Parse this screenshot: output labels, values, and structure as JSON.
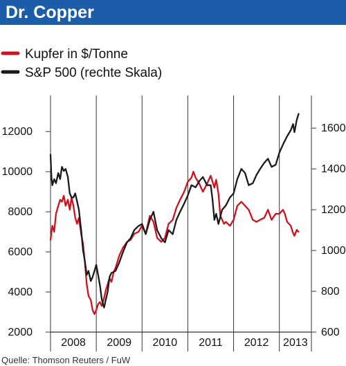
{
  "chart_data": {
    "type": "line",
    "title": "Dr. Copper",
    "source": "Quelle: Thomson Reuters / FuW",
    "x_categories": [
      "2008",
      "2009",
      "2010",
      "2011",
      "2012",
      "2013"
    ],
    "left_axis": {
      "ticks": [
        "2000",
        "4000",
        "6000",
        "8000",
        "10000",
        "12000"
      ],
      "ylim": [
        2000,
        13800
      ]
    },
    "right_axis": {
      "ticks": [
        "600",
        "800",
        "1000",
        "1200",
        "1400",
        "1600"
      ],
      "ylim": [
        600,
        1760
      ]
    },
    "xlim": [
      2008.0,
      2013.7
    ],
    "grid": "vertical year separators",
    "legend": "top-left",
    "series": [
      {
        "name": "Kupfer in $/Tonne",
        "axis": "left",
        "color": "#d0101c",
        "x": [
          2008.0,
          2008.04,
          2008.08,
          2008.12,
          2008.17,
          2008.21,
          2008.25,
          2008.29,
          2008.33,
          2008.38,
          2008.42,
          2008.46,
          2008.5,
          2008.54,
          2008.58,
          2008.62,
          2008.67,
          2008.71,
          2008.75,
          2008.79,
          2008.83,
          2008.88,
          2008.92,
          2008.96,
          2009.0,
          2009.04,
          2009.08,
          2009.12,
          2009.17,
          2009.21,
          2009.25,
          2009.29,
          2009.33,
          2009.38,
          2009.42,
          2009.5,
          2009.58,
          2009.67,
          2009.75,
          2009.83,
          2009.92,
          2010.0,
          2010.08,
          2010.17,
          2010.25,
          2010.33,
          2010.42,
          2010.5,
          2010.58,
          2010.67,
          2010.75,
          2010.83,
          2010.92,
          2011.0,
          2011.08,
          2011.12,
          2011.17,
          2011.25,
          2011.33,
          2011.42,
          2011.5,
          2011.58,
          2011.62,
          2011.67,
          2011.71,
          2011.75,
          2011.79,
          2011.83,
          2011.92,
          2012.0,
          2012.08,
          2012.17,
          2012.25,
          2012.33,
          2012.42,
          2012.5,
          2012.58,
          2012.67,
          2012.75,
          2012.83,
          2012.92,
          2013.0,
          2013.08,
          2013.12,
          2013.17,
          2013.21,
          2013.25,
          2013.29,
          2013.33,
          2013.38,
          2013.42
        ],
        "y": [
          6600,
          7300,
          7000,
          7900,
          8300,
          8600,
          8500,
          8800,
          8300,
          8600,
          8100,
          8700,
          8300,
          7700,
          7400,
          7700,
          6900,
          6400,
          5500,
          4400,
          3800,
          3600,
          3100,
          2900,
          3100,
          3400,
          3500,
          3300,
          3700,
          4100,
          4400,
          4700,
          4500,
          5000,
          5200,
          5800,
          6200,
          6500,
          6600,
          6900,
          7000,
          7300,
          6900,
          7800,
          7500,
          6700,
          6500,
          6700,
          7400,
          7600,
          8200,
          8600,
          9000,
          9500,
          9700,
          10000,
          9700,
          9400,
          9000,
          9400,
          9800,
          9200,
          9600,
          8900,
          7800,
          7600,
          7400,
          7500,
          7300,
          7600,
          8300,
          8500,
          8300,
          8100,
          7600,
          7500,
          7600,
          7700,
          8100,
          7600,
          7900,
          7900,
          8100,
          7900,
          7500,
          7400,
          7300,
          7000,
          6800,
          7100,
          7000
        ]
      },
      {
        "name": "S&P 500 (rechte Skala)",
        "axis": "right",
        "color": "#1a1a1a",
        "x": [
          2008.0,
          2008.02,
          2008.04,
          2008.08,
          2008.12,
          2008.17,
          2008.21,
          2008.25,
          2008.29,
          2008.33,
          2008.38,
          2008.42,
          2008.46,
          2008.5,
          2008.54,
          2008.58,
          2008.62,
          2008.67,
          2008.71,
          2008.75,
          2008.79,
          2008.83,
          2008.88,
          2008.92,
          2008.96,
          2009.0,
          2009.04,
          2009.08,
          2009.12,
          2009.17,
          2009.21,
          2009.25,
          2009.29,
          2009.33,
          2009.42,
          2009.5,
          2009.58,
          2009.67,
          2009.75,
          2009.83,
          2009.92,
          2010.0,
          2010.08,
          2010.17,
          2010.25,
          2010.33,
          2010.42,
          2010.5,
          2010.58,
          2010.67,
          2010.75,
          2010.83,
          2010.92,
          2011.0,
          2011.08,
          2011.17,
          2011.25,
          2011.33,
          2011.42,
          2011.5,
          2011.54,
          2011.58,
          2011.62,
          2011.67,
          2011.75,
          2011.83,
          2011.92,
          2012.0,
          2012.08,
          2012.17,
          2012.25,
          2012.33,
          2012.42,
          2012.5,
          2012.58,
          2012.67,
          2012.75,
          2012.83,
          2012.92,
          2013.0,
          2013.08,
          2013.17,
          2013.25,
          2013.3,
          2013.33,
          2013.38,
          2013.42
        ],
        "y": [
          1470,
          1360,
          1320,
          1350,
          1330,
          1380,
          1350,
          1410,
          1390,
          1400,
          1360,
          1280,
          1260,
          1260,
          1280,
          1240,
          1200,
          1100,
          1000,
          950,
          880,
          900,
          850,
          870,
          900,
          930,
          880,
          830,
          760,
          720,
          760,
          800,
          870,
          890,
          900,
          940,
          990,
          1040,
          1060,
          1100,
          1120,
          1130,
          1080,
          1150,
          1190,
          1100,
          1060,
          1040,
          1100,
          1080,
          1150,
          1190,
          1230,
          1270,
          1320,
          1310,
          1340,
          1360,
          1320,
          1320,
          1250,
          1150,
          1180,
          1130,
          1200,
          1220,
          1260,
          1280,
          1350,
          1400,
          1380,
          1320,
          1330,
          1370,
          1400,
          1430,
          1450,
          1410,
          1420,
          1480,
          1520,
          1560,
          1590,
          1620,
          1580,
          1640,
          1670
        ]
      }
    ]
  }
}
